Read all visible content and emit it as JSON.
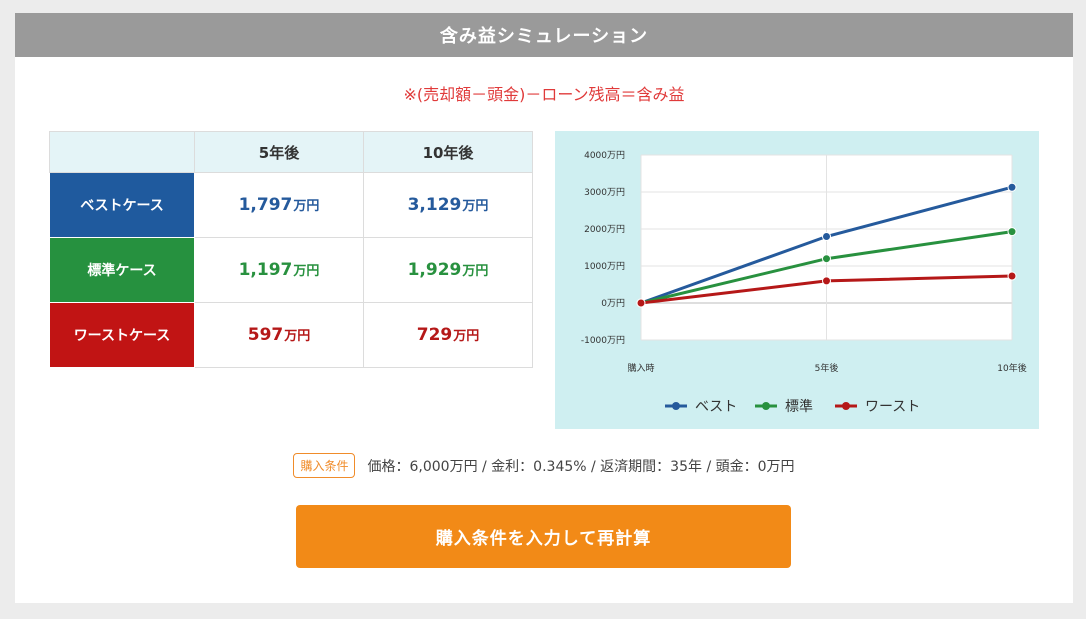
{
  "header": {
    "title": "含み益シミュレーション"
  },
  "formula": "※(売却額－頭金)－ローン残高＝含み益",
  "table": {
    "columns": [
      "",
      "5年後",
      "10年後"
    ],
    "rows": [
      {
        "label": "ベストケース",
        "v5": "1,797",
        "v10": "3,129",
        "unit": "万円",
        "color": "#1f5a9e"
      },
      {
        "label": "標準ケース",
        "v5": "1,197",
        "v10": "1,929",
        "unit": "万円",
        "color": "#26913f"
      },
      {
        "label": "ワーストケース",
        "v5": "597",
        "v10": "729",
        "unit": "万円",
        "color": "#c11414"
      }
    ]
  },
  "chart_data": {
    "type": "line",
    "x": [
      "購入時",
      "5年後",
      "10年後"
    ],
    "series": [
      {
        "name": "ベスト",
        "values": [
          0,
          1797,
          3129
        ],
        "color": "#255a9c"
      },
      {
        "name": "標準",
        "values": [
          0,
          1197,
          1929
        ],
        "color": "#28913f"
      },
      {
        "name": "ワースト",
        "values": [
          0,
          597,
          729
        ],
        "color": "#b51818"
      }
    ],
    "yticks": [
      -1000,
      0,
      1000,
      2000,
      3000,
      4000
    ],
    "ytick_labels": [
      "-1000万円",
      "0万円",
      "1000万円",
      "2000万円",
      "3000万円",
      "4000万円"
    ],
    "ylim": [
      -1000,
      4000
    ],
    "grid": true,
    "legend": "bottom",
    "background": "#cfeff1"
  },
  "conditions": {
    "badge": "購入条件",
    "text": "価格：6,000万円 / 金利：0.345% / 返済期間：35年 / 頭金：0万円"
  },
  "button": {
    "label": "購入条件を入力して再計算"
  }
}
